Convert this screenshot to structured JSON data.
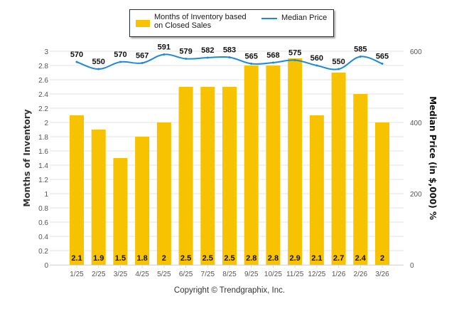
{
  "chart_data": {
    "type": "bar",
    "categories": [
      "1/25",
      "2/25",
      "3/25",
      "4/25",
      "5/25",
      "6/25",
      "7/25",
      "8/25",
      "9/25",
      "10/25",
      "11/25",
      "12/25",
      "1/26",
      "2/26",
      "3/26"
    ],
    "series": [
      {
        "name": "Months of Inventory based on Closed Sales",
        "type": "bar",
        "axis": "left",
        "color": "#f7c200",
        "values": [
          2.1,
          1.9,
          1.5,
          1.8,
          2,
          2.5,
          2.5,
          2.5,
          2.8,
          2.8,
          2.9,
          2.1,
          2.7,
          2.4,
          2
        ],
        "labels": [
          "2.1",
          "1.9",
          "1.5",
          "1.8",
          "2",
          "2.5",
          "2.5",
          "2.5",
          "2.8",
          "2.8",
          "2.9",
          "2.1",
          "2.7",
          "2.4",
          "2"
        ]
      },
      {
        "name": "Median Price",
        "type": "line",
        "axis": "right",
        "color": "#1f8ad4",
        "values": [
          570,
          550,
          570,
          567,
          591,
          579,
          582,
          583,
          565,
          568,
          575,
          560,
          550,
          585,
          565
        ],
        "labels": [
          "570",
          "550",
          "570",
          "567",
          "591",
          "579",
          "582",
          "583",
          "565",
          "568",
          "575",
          "560",
          "550",
          "585",
          "565"
        ]
      }
    ],
    "ylabel": "Months of Inventory",
    "y2label": "Median Price (in $,000) %",
    "ylim": [
      0,
      3
    ],
    "y2lim": [
      0,
      600
    ],
    "yticks": [
      "0",
      "0.2",
      "0.4",
      "0.6",
      "0.8",
      "1",
      "1.2",
      "1.4",
      "1.6",
      "1.8",
      "2",
      "2.2",
      "2.4",
      "2.6",
      "2.8",
      "3"
    ],
    "y2ticks": [
      "0",
      "200",
      "400",
      "600"
    ],
    "grid": true,
    "legend_position": "top-center"
  },
  "legend": {
    "bar_label": "Months of Inventory based on Closed Sales",
    "line_label": "Median Price"
  },
  "footer": {
    "copyright": "Copyright © Trendgraphix, Inc."
  }
}
